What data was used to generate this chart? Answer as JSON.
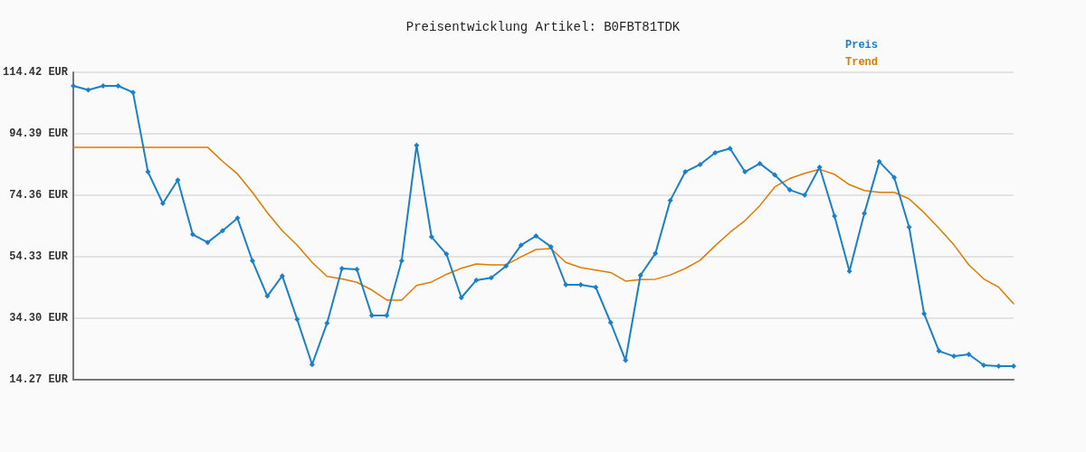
{
  "chart_data": {
    "type": "line",
    "title": "Preisentwicklung Artikel: B0FBT81TDK",
    "categories": [
      null,
      null,
      null,
      null,
      null,
      null,
      null,
      null,
      null,
      null,
      null,
      null,
      null,
      null,
      null,
      null,
      null,
      null,
      null,
      null,
      null,
      null,
      null,
      null,
      null,
      null,
      null,
      null,
      null,
      null,
      null,
      null,
      null,
      null,
      null,
      null,
      null,
      null,
      null,
      null,
      null,
      null,
      null,
      null,
      null,
      null,
      null,
      null,
      null,
      null,
      null,
      null,
      null,
      null,
      null,
      null,
      null,
      null,
      null,
      null,
      null,
      null,
      null,
      null
    ],
    "series": [
      {
        "name": "Preis",
        "color": "#1a80c8",
        "marker": "diamond",
        "values": [
          110.0,
          108.7,
          110.0,
          110.0,
          107.9,
          82.0,
          71.7,
          79.3,
          61.6,
          59.0,
          62.8,
          66.9,
          53.0,
          41.5,
          48.1,
          33.9,
          19.2,
          32.7,
          50.5,
          50.2,
          35.2,
          35.2,
          53.0,
          90.6,
          60.8,
          55.2,
          41.0,
          46.7,
          47.5,
          51.3,
          58.1,
          61.1,
          57.6,
          45.2,
          45.2,
          44.4,
          32.9,
          20.6,
          48.3,
          55.4,
          72.7,
          82.0,
          84.4,
          88.2,
          89.6,
          82.0,
          84.7,
          81.0,
          76.1,
          74.4,
          83.5,
          67.6,
          49.6,
          68.5,
          85.3,
          80.2,
          64.0,
          35.8,
          23.6,
          21.9,
          22.5,
          19.0,
          18.7,
          18.7
        ]
      },
      {
        "name": "Trend",
        "color": "#e07b00",
        "marker": "none",
        "values": [
          90.0,
          90.0,
          90.0,
          90.0,
          90.0,
          90.0,
          90.0,
          90.0,
          90.0,
          90.0,
          85.4,
          81.3,
          75.3,
          68.7,
          62.8,
          58.1,
          52.5,
          47.9,
          47.1,
          46.0,
          43.5,
          40.2,
          40.2,
          45.0,
          46.1,
          48.6,
          50.6,
          52.0,
          51.7,
          51.7,
          54.3,
          56.7,
          57.0,
          52.5,
          50.8,
          50.0,
          49.2,
          46.4,
          46.9,
          47.0,
          48.4,
          50.5,
          53.2,
          57.9,
          62.3,
          66.1,
          71.0,
          77.1,
          79.8,
          81.5,
          82.8,
          81.2,
          77.8,
          75.9,
          75.3,
          75.3,
          73.2,
          68.7,
          63.6,
          58.2,
          51.7,
          47.1,
          44.4,
          39.0
        ]
      }
    ],
    "ylim": [
      14.27,
      114.42
    ],
    "yticks": [
      {
        "value": 14.27,
        "label": "14.27 EUR"
      },
      {
        "value": 34.3,
        "label": "34.30 EUR"
      },
      {
        "value": 54.33,
        "label": "54.33 EUR"
      },
      {
        "value": 74.36,
        "label": "74.36 EUR"
      },
      {
        "value": 94.39,
        "label": "94.39 EUR"
      },
      {
        "value": 114.42,
        "label": "114.42 EUR"
      }
    ],
    "grid": "y",
    "legend": "top right",
    "line_style": "solid"
  }
}
